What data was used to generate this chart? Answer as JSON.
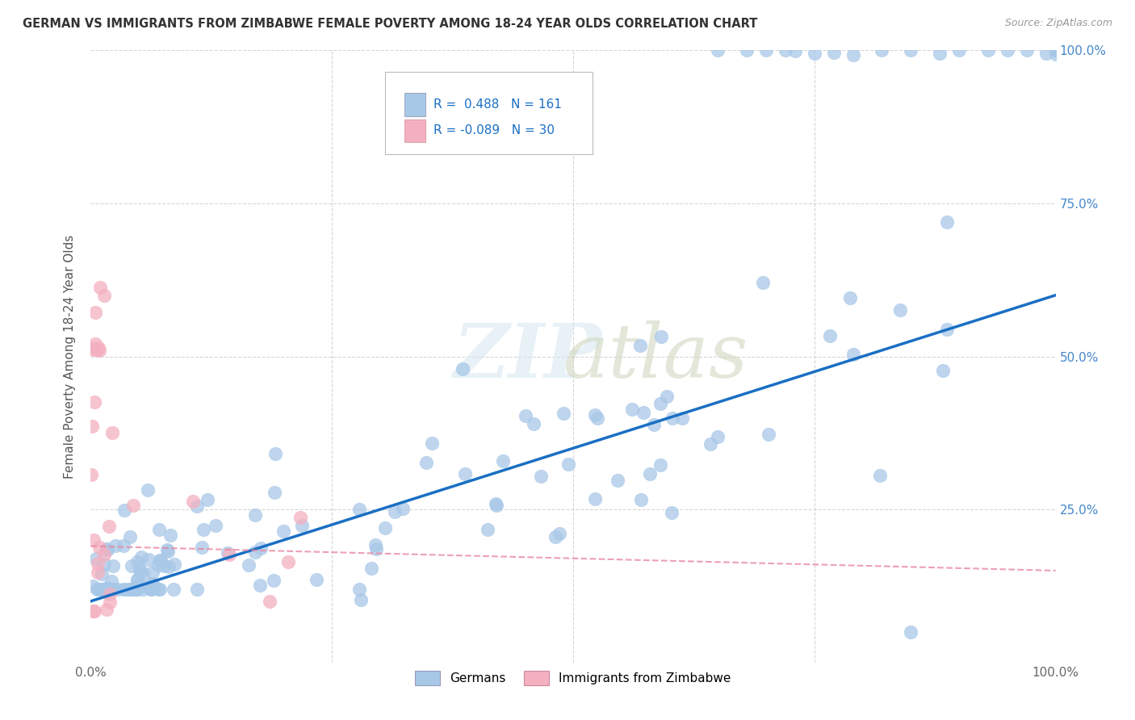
{
  "title": "GERMAN VS IMMIGRANTS FROM ZIMBABWE FEMALE POVERTY AMONG 18-24 YEAR OLDS CORRELATION CHART",
  "source": "Source: ZipAtlas.com",
  "ylabel": "Female Poverty Among 18-24 Year Olds",
  "german_color": "#a8c8e8",
  "zimbabwe_color": "#f4b0c0",
  "german_R": 0.488,
  "german_N": 161,
  "zimbabwe_R": -0.089,
  "zimbabwe_N": 30,
  "legend_label_german": "Germans",
  "legend_label_zimbabwe": "Immigrants from Zimbabwe",
  "watermark_part1": "ZIP",
  "watermark_part2": "atlas",
  "background_color": "#ffffff",
  "grid_color": "#cccccc",
  "german_line_color": "#1a6fc4",
  "zimbabwe_line_color": "#e888a0",
  "german_line_intercept": 0.1,
  "german_line_slope": 0.5,
  "zimbabwe_line_intercept": 0.19,
  "zimbabwe_line_slope": -0.04,
  "right_tick_color": "#4488cc",
  "left_tick_color": "#888888"
}
